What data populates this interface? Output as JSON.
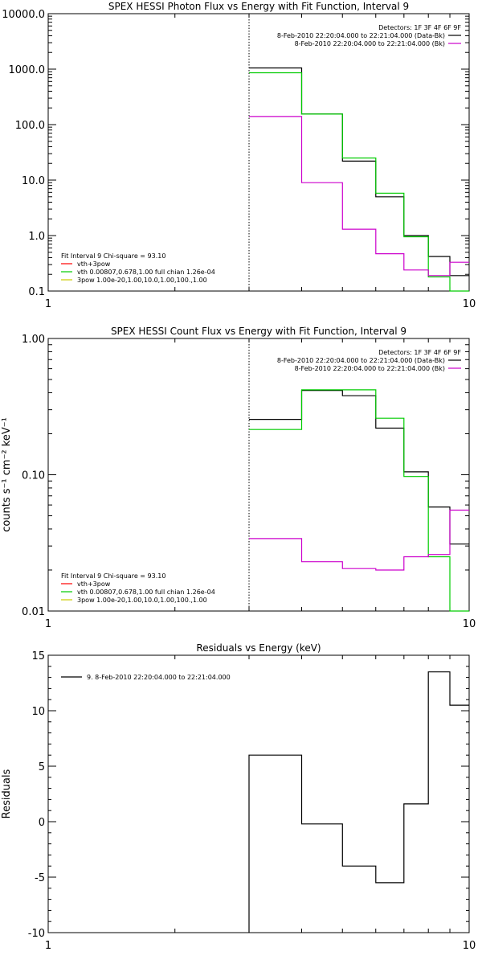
{
  "chart_data": [
    {
      "type": "line",
      "step": true,
      "title": "SPEX HESSI Photon Flux vs Energy with Fit Function, Interval 9",
      "xlabel": "",
      "ylabel": "",
      "xscale": "log",
      "yscale": "log",
      "xlim": [
        1,
        10
      ],
      "ylim": [
        0.1,
        10000
      ],
      "xticks": [
        1,
        10
      ],
      "xtick_labels": [
        "1",
        "10"
      ],
      "yticks": [
        0.1,
        1,
        10,
        100,
        1000,
        10000
      ],
      "ytick_labels": [
        "0.1",
        "1.0",
        "10.0",
        "100.0",
        "1000.0",
        "10000.0"
      ],
      "marker_x": 3.0,
      "edges": [
        3.0,
        4.0,
        5.0,
        6.0,
        7.0,
        8.0,
        9.0,
        10.0
      ],
      "series": [
        {
          "color": "#000000",
          "values": [
            1050,
            155,
            22,
            5.0,
            1.0,
            0.42,
            0.19
          ]
        },
        {
          "color": "#00cc00",
          "values": [
            860,
            155,
            25,
            5.8,
            0.95,
            0.18,
            0.07
          ]
        },
        {
          "color": "#cc00cc",
          "values": [
            140,
            9,
            1.3,
            0.47,
            0.24,
            0.19,
            0.33
          ]
        }
      ],
      "legend_top": {
        "header": "Detectors: 1F 3F 4F 6F 9F",
        "entries": [
          {
            "label": "8-Feb-2010 22:20:04.000 to 22:21:04.000 (Data-Bk)",
            "color": "#000000"
          },
          {
            "label": "8-Feb-2010 22:20:04.000 to 22:21:04.000 (Bk)",
            "color": "#cc00cc"
          }
        ]
      },
      "legend_fit": {
        "header": "Fit Interval 9   Chi-square = 93.10",
        "entries": [
          {
            "label": "vth+3pow",
            "color": "#ff0000"
          },
          {
            "label": "vth 0.00807,0.678,1.00  full chian 1.26e-04",
            "color": "#00cc00"
          },
          {
            "label": "3pow 1.00e-20,1.00,10.0,1.00,100.,1.00",
            "color": "#cccc00"
          }
        ]
      }
    },
    {
      "type": "line",
      "step": true,
      "title": "SPEX HESSI Count Flux vs Energy with Fit Function, Interval 9",
      "xlabel": "",
      "ylabel": "counts s⁻¹ cm⁻² keV⁻¹",
      "xscale": "log",
      "yscale": "log",
      "xlim": [
        1,
        10
      ],
      "ylim": [
        0.01,
        1
      ],
      "xticks": [
        1,
        10
      ],
      "xtick_labels": [
        "1",
        "10"
      ],
      "yticks": [
        0.01,
        0.1,
        1
      ],
      "ytick_labels": [
        "0.01",
        "0.10",
        "1.00"
      ],
      "marker_x": 3.0,
      "edges": [
        3.0,
        4.0,
        5.0,
        6.0,
        7.0,
        8.0,
        9.0,
        10.0
      ],
      "series": [
        {
          "color": "#000000",
          "values": [
            0.255,
            0.415,
            0.38,
            0.22,
            0.105,
            0.058,
            0.031
          ]
        },
        {
          "color": "#00cc00",
          "values": [
            0.215,
            0.42,
            0.42,
            0.26,
            0.097,
            0.025,
            0.005
          ]
        },
        {
          "color": "#cc00cc",
          "values": [
            0.034,
            0.023,
            0.0205,
            0.02,
            0.025,
            0.026,
            0.055
          ]
        }
      ],
      "legend_top": {
        "header": "Detectors: 1F 3F 4F 6F 9F",
        "entries": [
          {
            "label": "8-Feb-2010 22:20:04.000 to 22:21:04.000 (Data-Bk)",
            "color": "#000000"
          },
          {
            "label": "8-Feb-2010 22:20:04.000 to 22:21:04.000 (Bk)",
            "color": "#cc00cc"
          }
        ]
      },
      "legend_fit": {
        "header": "Fit Interval 9   Chi-square = 93.10",
        "entries": [
          {
            "label": "vth+3pow",
            "color": "#ff0000"
          },
          {
            "label": "vth 0.00807,0.678,1.00  full chian 1.26e-04",
            "color": "#00cc00"
          },
          {
            "label": "3pow 1.00e-20,1.00,10.0,1.00,100.,1.00",
            "color": "#cccc00"
          }
        ]
      }
    },
    {
      "type": "line",
      "step": true,
      "title": "Residuals vs Energy (keV)",
      "xlabel": "",
      "ylabel": "Residuals",
      "xscale": "log",
      "yscale": "linear",
      "xlim": [
        1,
        10
      ],
      "ylim": [
        -10,
        15
      ],
      "xticks": [
        1,
        10
      ],
      "xtick_labels": [
        "1",
        "10"
      ],
      "yticks": [
        -10,
        -5,
        0,
        5,
        10,
        15
      ],
      "ytick_labels": [
        "-10",
        "-5",
        "0",
        "5",
        "10",
        "15"
      ],
      "edges": [
        3.0,
        4.0,
        5.0,
        6.0,
        7.0,
        8.0,
        9.0,
        10.0
      ],
      "series": [
        {
          "color": "#000000",
          "values": [
            6.0,
            -0.2,
            -4.0,
            -5.5,
            1.6,
            13.5,
            10.5
          ],
          "drop_start": true
        }
      ],
      "legend_top": {
        "header": "",
        "entries": [
          {
            "label": "9.  8-Feb-2010 22:20:04.000 to 22:21:04.000",
            "color": "#000000"
          }
        ]
      }
    }
  ]
}
